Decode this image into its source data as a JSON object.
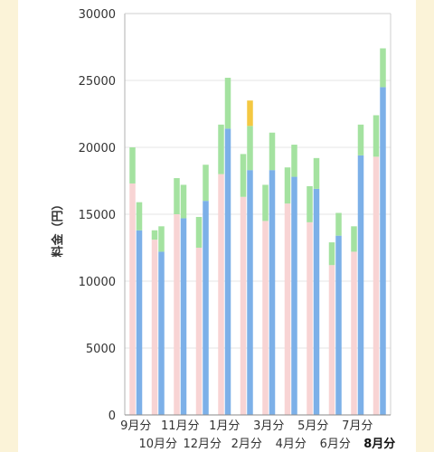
{
  "chart_data": {
    "type": "bar",
    "ylabel": "料金（円）",
    "ylim": [
      0,
      30000
    ],
    "yticks": [
      0,
      5000,
      10000,
      15000,
      20000,
      25000,
      30000
    ],
    "categories": [
      "9月分",
      "10月分",
      "11月分",
      "12月分",
      "1月分",
      "2月分",
      "3月分",
      "4月分",
      "5月分",
      "6月分",
      "7月分",
      "8月分"
    ],
    "highlight_category": "8月分",
    "grid": true,
    "colors": {
      "prev_base": "#f8d4d4",
      "curr_base": "#7cb0e8",
      "top": "#a4e2a0",
      "extra": "#f4c842"
    },
    "series": [
      {
        "name": "",
        "stack": "前年",
        "color_key": "prev_base",
        "values": [
          17300,
          13100,
          15000,
          12500,
          18000,
          16300,
          14500,
          15800,
          14400,
          11200,
          12200,
          19300
        ]
      },
      {
        "name": "",
        "stack": "前年",
        "color_key": "top",
        "values": [
          2700,
          700,
          2700,
          2300,
          3700,
          3200,
          2700,
          2700,
          2700,
          1700,
          1900,
          3100
        ]
      },
      {
        "name": "",
        "stack": "当年",
        "color_key": "curr_base",
        "values": [
          13800,
          12200,
          14700,
          16000,
          21400,
          18300,
          18300,
          17800,
          16900,
          13400,
          19400,
          24500
        ]
      },
      {
        "name": "",
        "stack": "当年",
        "color_key": "top",
        "values": [
          2100,
          1900,
          2500,
          2700,
          3800,
          3300,
          2800,
          2400,
          2300,
          1700,
          2300,
          2900
        ]
      },
      {
        "name": "",
        "stack": "当年",
        "color_key": "extra",
        "values": [
          0,
          0,
          0,
          0,
          0,
          1900,
          0,
          0,
          0,
          0,
          0,
          0
        ]
      }
    ]
  }
}
